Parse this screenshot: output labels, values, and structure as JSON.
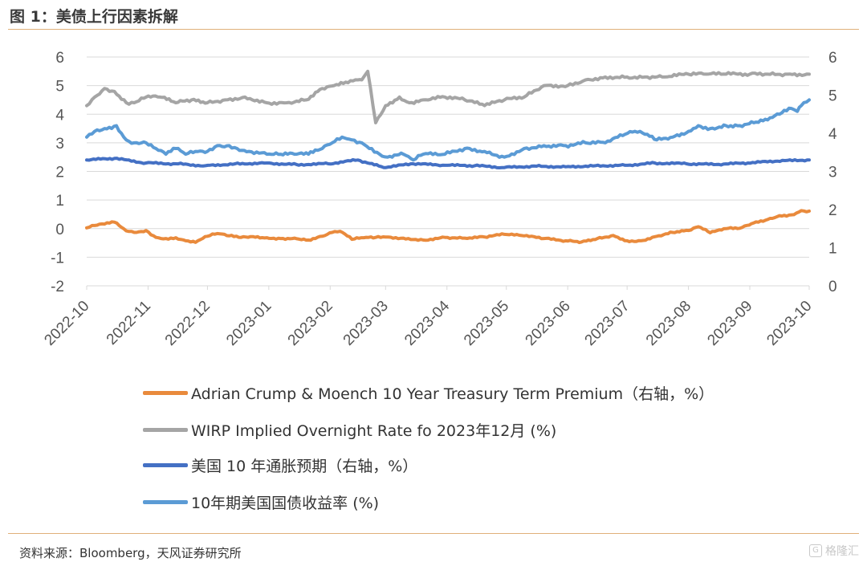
{
  "figure": {
    "title": "图 1：美债上行因素拆解",
    "source": "资料来源：Bloomberg，天风证券研究所",
    "watermark": "格隆汇"
  },
  "colors": {
    "term_premium": "#e98a3c",
    "wirp": "#a5a5a5",
    "inflation_expectation": "#4470c4",
    "ten_year_yield": "#5b9bd5",
    "grid": "#d9d9d9",
    "rule": "#e0b07a"
  },
  "chart_data": {
    "type": "line",
    "x_type": "date",
    "x_ticks": [
      "2022-10",
      "2022-11",
      "2022-12",
      "2023-01",
      "2023-02",
      "2023-03",
      "2023-04",
      "2023-05",
      "2023-06",
      "2023-07",
      "2023-08",
      "2023-09",
      "2023-10"
    ],
    "y_left": {
      "lim": [
        -2,
        6
      ],
      "ticks": [
        "-2",
        "-1",
        "0",
        "1",
        "2",
        "3",
        "4",
        "5",
        "6"
      ]
    },
    "y_right": {
      "lim": [
        0,
        6
      ],
      "ticks": [
        "0",
        "1",
        "2",
        "3",
        "4",
        "5",
        "6"
      ]
    },
    "grid": true,
    "legend_position": "bottom",
    "series": [
      {
        "key": "term_premium",
        "name": "Adrian Crump & Moench 10 Year Treasury Term Premium（右轴，%）",
        "axis": "right",
        "x": [
          "2022-10-01",
          "2022-10-05",
          "2022-10-10",
          "2022-10-15",
          "2022-10-21",
          "2022-10-25",
          "2022-10-31",
          "2022-11-05",
          "2022-11-10",
          "2022-11-15",
          "2022-11-20",
          "2022-11-25",
          "2022-12-01",
          "2022-12-06",
          "2022-12-12",
          "2022-12-18",
          "2022-12-24",
          "2022-12-31",
          "2023-01-07",
          "2023-01-14",
          "2023-01-21",
          "2023-01-28",
          "2023-02-02",
          "2023-02-06",
          "2023-02-12",
          "2023-02-18",
          "2023-02-24",
          "2023-03-01",
          "2023-03-10",
          "2023-03-20",
          "2023-03-31",
          "2023-04-10",
          "2023-04-20",
          "2023-04-30",
          "2023-05-10",
          "2023-05-20",
          "2023-05-31",
          "2023-06-08",
          "2023-06-16",
          "2023-06-24",
          "2023-07-01",
          "2023-07-08",
          "2023-07-16",
          "2023-07-24",
          "2023-08-01",
          "2023-08-06",
          "2023-08-12",
          "2023-08-20",
          "2023-08-27",
          "2023-09-03",
          "2023-09-10",
          "2023-09-16",
          "2023-09-22",
          "2023-09-27",
          "2023-10-01"
        ],
        "y": [
          1.52,
          1.58,
          1.62,
          1.67,
          1.44,
          1.4,
          1.45,
          1.27,
          1.24,
          1.26,
          1.18,
          1.14,
          1.3,
          1.37,
          1.31,
          1.27,
          1.29,
          1.26,
          1.24,
          1.25,
          1.2,
          1.3,
          1.4,
          1.43,
          1.22,
          1.26,
          1.27,
          1.28,
          1.25,
          1.2,
          1.27,
          1.25,
          1.28,
          1.35,
          1.31,
          1.24,
          1.18,
          1.15,
          1.24,
          1.32,
          1.18,
          1.18,
          1.3,
          1.4,
          1.45,
          1.55,
          1.39,
          1.5,
          1.51,
          1.65,
          1.74,
          1.84,
          1.86,
          1.97,
          1.96
        ]
      },
      {
        "key": "wirp",
        "name": "WIRP Implied Overnight Rate fo 2023年12月 (%)",
        "axis": "left",
        "x": [
          "2022-10-01",
          "2022-10-05",
          "2022-10-10",
          "2022-10-15",
          "2022-10-21",
          "2022-10-25",
          "2022-10-31",
          "2022-11-07",
          "2022-11-15",
          "2022-11-23",
          "2022-12-01",
          "2022-12-10",
          "2022-12-20",
          "2022-12-31",
          "2023-01-10",
          "2023-01-20",
          "2023-01-28",
          "2023-02-03",
          "2023-02-10",
          "2023-02-15",
          "2023-02-17",
          "2023-02-20",
          "2023-02-24",
          "2023-03-01",
          "2023-03-08",
          "2023-03-13",
          "2023-03-20",
          "2023-03-31",
          "2023-04-10",
          "2023-04-20",
          "2023-04-30",
          "2023-05-10",
          "2023-05-20",
          "2023-06-01",
          "2023-06-10",
          "2023-06-20",
          "2023-07-01",
          "2023-07-10",
          "2023-07-20",
          "2023-08-01",
          "2023-08-10",
          "2023-08-20",
          "2023-09-01",
          "2023-09-10",
          "2023-09-20",
          "2023-10-01"
        ],
        "y": [
          4.3,
          4.6,
          4.9,
          4.8,
          4.4,
          4.4,
          4.6,
          4.6,
          4.4,
          4.5,
          4.4,
          4.5,
          4.6,
          4.4,
          4.4,
          4.5,
          4.9,
          5.0,
          5.1,
          5.2,
          5.2,
          5.5,
          3.7,
          4.3,
          4.6,
          4.4,
          4.5,
          4.6,
          4.5,
          4.3,
          4.5,
          4.6,
          5.0,
          5.0,
          5.2,
          5.3,
          5.3,
          5.3,
          5.3,
          5.4,
          5.4,
          5.4,
          5.4,
          5.4,
          5.4,
          5.4
        ]
      },
      {
        "key": "inflation_expectation",
        "name": "美国 10 年通胀预期（右轴，%）",
        "axis": "right",
        "x": [
          "2022-10-01",
          "2022-10-15",
          "2022-10-31",
          "2022-11-15",
          "2022-11-30",
          "2022-12-15",
          "2022-12-31",
          "2023-01-15",
          "2023-01-31",
          "2023-02-15",
          "2023-02-28",
          "2023-03-15",
          "2023-03-31",
          "2023-04-15",
          "2023-04-30",
          "2023-05-15",
          "2023-05-31",
          "2023-06-15",
          "2023-06-30",
          "2023-07-15",
          "2023-07-31",
          "2023-08-15",
          "2023-08-31",
          "2023-09-15",
          "2023-09-30",
          "2023-10-01"
        ],
        "y": [
          3.3,
          3.34,
          3.22,
          3.2,
          3.15,
          3.2,
          3.22,
          3.18,
          3.2,
          3.3,
          3.1,
          3.2,
          3.16,
          3.15,
          3.1,
          3.14,
          3.12,
          3.15,
          3.16,
          3.22,
          3.2,
          3.18,
          3.22,
          3.27,
          3.3,
          3.3
        ]
      },
      {
        "key": "ten_year_yield",
        "name": "10年期美国国债收益率 (%)",
        "axis": "left",
        "x": [
          "2022-10-01",
          "2022-10-05",
          "2022-10-10",
          "2022-10-16",
          "2022-10-21",
          "2022-10-25",
          "2022-10-31",
          "2022-11-05",
          "2022-11-10",
          "2022-11-15",
          "2022-11-20",
          "2022-11-25",
          "2022-12-01",
          "2022-12-06",
          "2022-12-12",
          "2022-12-16",
          "2022-12-22",
          "2022-12-31",
          "2023-01-07",
          "2023-01-14",
          "2023-01-21",
          "2023-01-28",
          "2023-02-02",
          "2023-02-07",
          "2023-02-12",
          "2023-02-17",
          "2023-02-22",
          "2023-02-26",
          "2023-03-02",
          "2023-03-10",
          "2023-03-15",
          "2023-03-20",
          "2023-03-31",
          "2023-04-10",
          "2023-04-20",
          "2023-04-30",
          "2023-05-10",
          "2023-05-20",
          "2023-05-31",
          "2023-06-10",
          "2023-06-20",
          "2023-06-30",
          "2023-07-05",
          "2023-07-10",
          "2023-07-16",
          "2023-07-24",
          "2023-08-01",
          "2023-08-06",
          "2023-08-12",
          "2023-08-20",
          "2023-08-27",
          "2023-09-03",
          "2023-09-10",
          "2023-09-16",
          "2023-09-22",
          "2023-09-25",
          "2023-09-27",
          "2023-10-01"
        ],
        "y": [
          3.2,
          3.4,
          3.5,
          3.6,
          3.1,
          3.0,
          3.0,
          2.8,
          2.6,
          2.8,
          2.6,
          2.7,
          2.7,
          2.9,
          2.9,
          2.8,
          2.7,
          2.6,
          2.6,
          2.6,
          2.6,
          2.8,
          3.0,
          3.2,
          3.1,
          3.0,
          2.8,
          2.6,
          2.5,
          2.6,
          2.4,
          2.6,
          2.6,
          2.8,
          2.7,
          2.5,
          2.8,
          2.9,
          2.9,
          3.0,
          3.0,
          3.3,
          3.4,
          3.3,
          3.1,
          3.2,
          3.4,
          3.6,
          3.5,
          3.6,
          3.6,
          3.7,
          3.8,
          4.0,
          4.2,
          4.1,
          4.3,
          4.5
        ]
      }
    ]
  }
}
